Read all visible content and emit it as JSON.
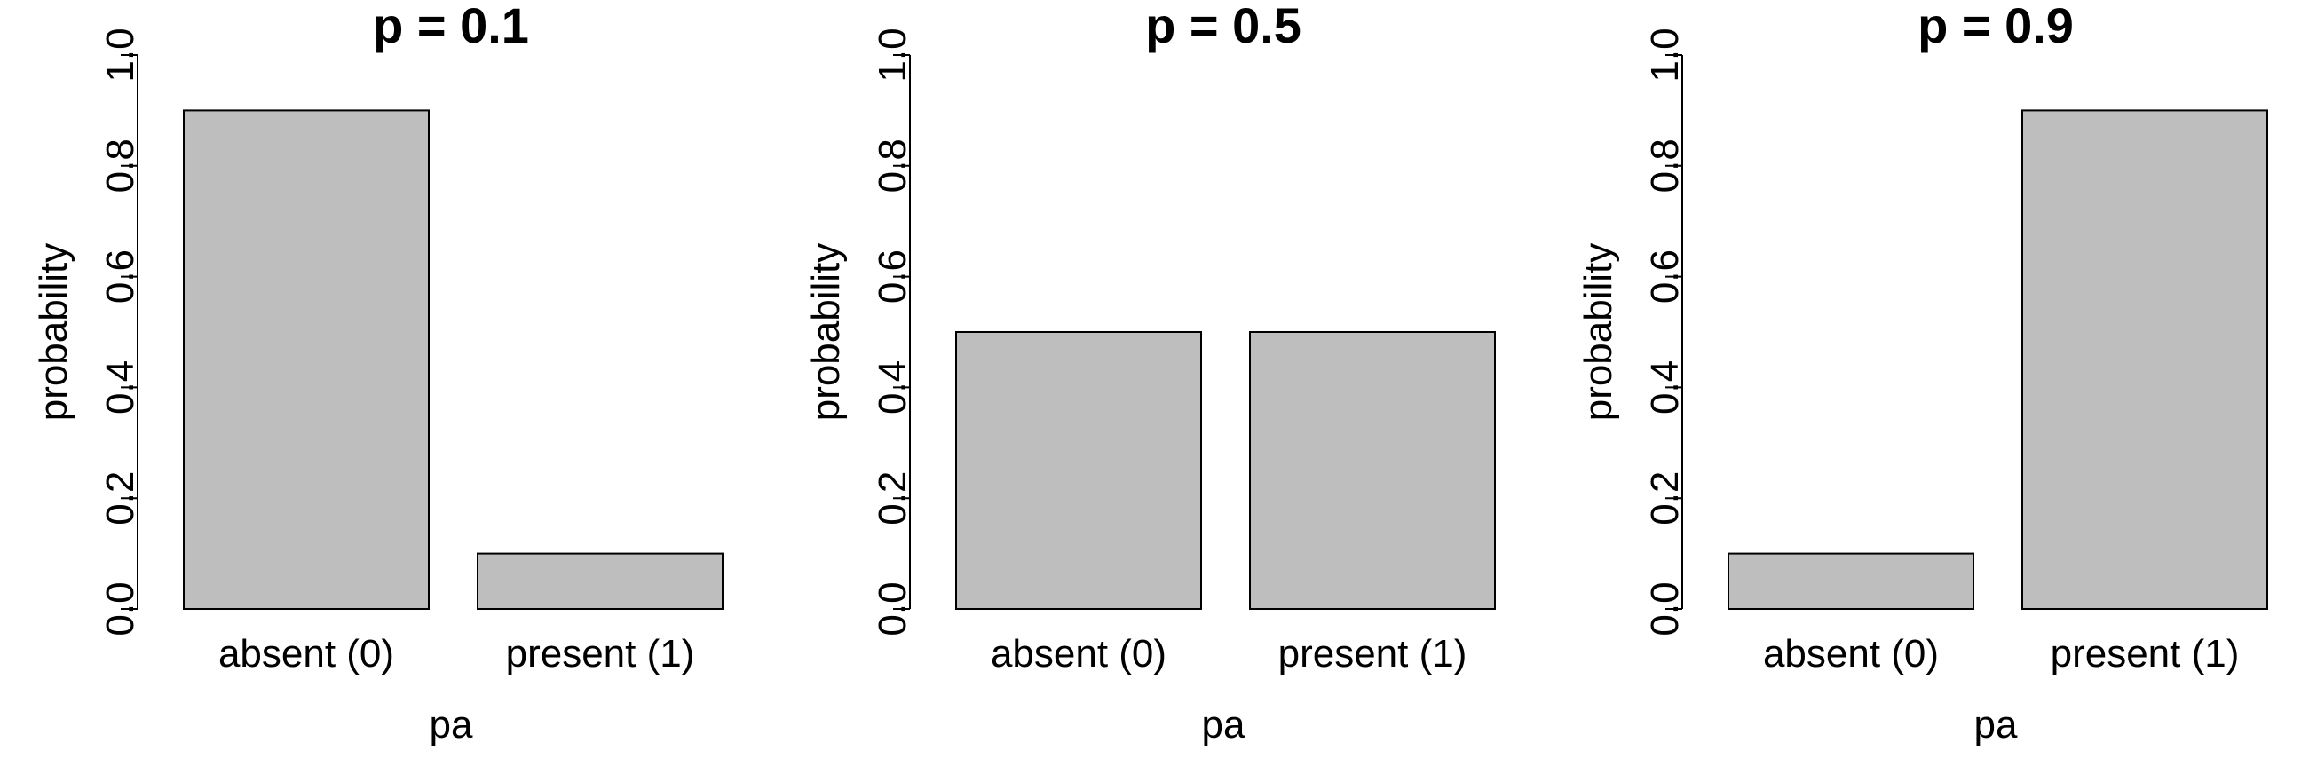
{
  "chart_data": [
    {
      "type": "bar",
      "title": "p = 0.1",
      "xlabel": "pa",
      "ylabel": "probability",
      "categories": [
        "absent (0)",
        "present (1)"
      ],
      "values": [
        0.9,
        0.1
      ],
      "ylim": [
        0,
        1
      ],
      "yticks": [
        "0.0",
        "0.2",
        "0.4",
        "0.6",
        "0.8",
        "1.0"
      ],
      "bar_color": "#bebebe",
      "grid": false,
      "legend": "none"
    },
    {
      "type": "bar",
      "title": "p = 0.5",
      "xlabel": "pa",
      "ylabel": "probability",
      "categories": [
        "absent (0)",
        "present (1)"
      ],
      "values": [
        0.5,
        0.5
      ],
      "ylim": [
        0,
        1
      ],
      "yticks": [
        "0.0",
        "0.2",
        "0.4",
        "0.6",
        "0.8",
        "1.0"
      ],
      "bar_color": "#bebebe",
      "grid": false,
      "legend": "none"
    },
    {
      "type": "bar",
      "title": "p = 0.9",
      "xlabel": "pa",
      "ylabel": "probability",
      "categories": [
        "absent (0)",
        "present (1)"
      ],
      "values": [
        0.1,
        0.9
      ],
      "ylim": [
        0,
        1
      ],
      "yticks": [
        "0.0",
        "0.2",
        "0.4",
        "0.6",
        "0.8",
        "1.0"
      ],
      "bar_color": "#bebebe",
      "grid": false,
      "legend": "none"
    }
  ]
}
